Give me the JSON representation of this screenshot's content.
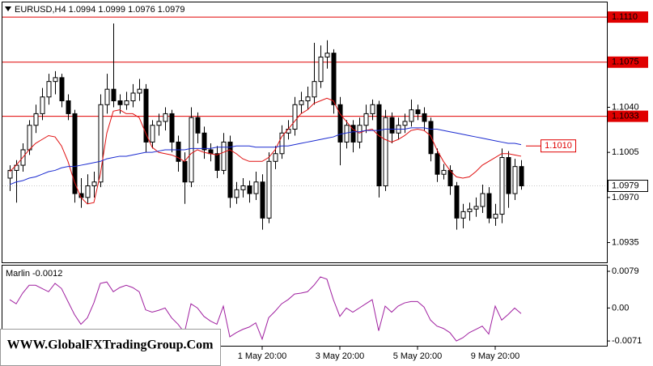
{
  "chart_data": [
    {
      "type": "candlestick",
      "symbol": "EURUSD,H4",
      "categories": [
        null,
        null,
        null,
        null,
        null,
        null,
        null,
        null,
        null,
        null,
        null,
        null,
        null,
        null,
        null,
        null,
        null,
        null,
        null,
        null,
        null,
        null,
        null,
        null,
        null,
        null,
        null,
        null,
        null,
        null,
        null,
        null,
        null,
        null,
        null,
        null,
        null,
        null,
        null,
        "1 May 20:00",
        null,
        null,
        null,
        null,
        null,
        null,
        null,
        null,
        null,
        null,
        null,
        "3 May 20:00",
        null,
        null,
        null,
        null,
        null,
        null,
        null,
        null,
        null,
        null,
        null,
        "5 May 20:00",
        null,
        null,
        null,
        null,
        null,
        null,
        null,
        null,
        null,
        null,
        null,
        "9 May 20:00",
        null,
        null,
        null,
        null
      ],
      "ohlc": [
        [
          1.0985,
          1.0995,
          1.0975,
          1.0991
        ],
        [
          1.0991,
          1.0999,
          1.0966,
          1.0995
        ],
        [
          1.0995,
          1.1012,
          1.099,
          1.1007
        ],
        [
          1.1007,
          1.103,
          1.1003,
          1.1026
        ],
        [
          1.1026,
          1.1042,
          1.102,
          1.1035
        ],
        [
          1.1035,
          1.1055,
          1.103,
          1.1048
        ],
        [
          1.1048,
          1.1066,
          1.1042,
          1.106
        ],
        [
          1.106,
          1.1068,
          1.105,
          1.1063
        ],
        [
          1.1063,
          1.1066,
          1.104,
          1.1045
        ],
        [
          1.1045,
          1.105,
          1.103,
          1.1035
        ],
        [
          1.1035,
          1.1038,
          1.0966,
          1.0973
        ],
        [
          1.0973,
          1.0985,
          1.0962,
          1.097
        ],
        [
          1.097,
          1.0988,
          1.0965,
          1.0979
        ],
        [
          1.0979,
          1.099,
          1.097,
          1.0982
        ],
        [
          1.0982,
          1.105,
          1.0978,
          1.1042
        ],
        [
          1.1042,
          1.1066,
          1.1035,
          1.1054
        ],
        [
          1.1054,
          1.1105,
          1.104,
          1.1045
        ],
        [
          1.1045,
          1.105,
          1.1035,
          1.1042
        ],
        [
          1.1042,
          1.1052,
          1.1038,
          1.1045
        ],
        [
          1.1045,
          1.1058,
          1.104,
          1.1051
        ],
        [
          1.1051,
          1.1062,
          1.1045,
          1.1054
        ],
        [
          1.1054,
          1.1058,
          1.1005,
          1.1013
        ],
        [
          1.1013,
          1.103,
          1.1008,
          1.1026
        ],
        [
          1.1026,
          1.1035,
          1.1018,
          1.1029
        ],
        [
          1.1029,
          1.104,
          1.1022,
          1.1035
        ],
        [
          1.1035,
          1.1038,
          1.1005,
          1.1013
        ],
        [
          1.1013,
          1.1018,
          1.099,
          1.0998
        ],
        [
          1.0998,
          1.1005,
          1.0965,
          1.0982
        ],
        [
          1.0982,
          1.104,
          1.0978,
          1.1032
        ],
        [
          1.1032,
          1.1036,
          1.1012,
          1.102
        ],
        [
          1.102,
          1.1025,
          1.1,
          1.1007
        ],
        [
          1.1007,
          1.1012,
          1.0998,
          1.1004
        ],
        [
          1.1004,
          1.101,
          1.0985,
          1.0991
        ],
        [
          1.0991,
          1.102,
          1.0988,
          1.1013
        ],
        [
          1.1013,
          1.1018,
          1.0962,
          1.097
        ],
        [
          1.097,
          1.0982,
          1.0965,
          1.0976
        ],
        [
          1.0976,
          1.0985,
          1.097,
          1.0979
        ],
        [
          1.0979,
          1.0983,
          1.0966,
          1.0973
        ],
        [
          1.0973,
          1.099,
          1.0968,
          1.0982
        ],
        [
          1.0982,
          1.0988,
          1.0945,
          1.0954
        ],
        [
          1.0954,
          1.1005,
          1.095,
          1.0998
        ],
        [
          1.0998,
          1.101,
          1.0992,
          1.1004
        ],
        [
          1.1004,
          1.1026,
          1.1,
          1.102
        ],
        [
          1.102,
          1.103,
          1.1015,
          1.1023
        ],
        [
          1.1023,
          1.1048,
          1.1018,
          1.1042
        ],
        [
          1.1042,
          1.1052,
          1.1035,
          1.1045
        ],
        [
          1.1045,
          1.1056,
          1.1038,
          1.1048
        ],
        [
          1.1048,
          1.109,
          1.1042,
          1.106
        ],
        [
          1.106,
          1.1088,
          1.1055,
          1.1079
        ],
        [
          1.1079,
          1.1092,
          1.107,
          1.1082
        ],
        [
          1.1082,
          1.1085,
          1.1035,
          1.1042
        ],
        [
          1.1042,
          1.1048,
          1.0995,
          1.1013
        ],
        [
          1.1013,
          1.103,
          1.1008,
          1.1026
        ],
        [
          1.1026,
          1.103,
          1.1005,
          1.1013
        ],
        [
          1.1013,
          1.1032,
          1.1008,
          1.1026
        ],
        [
          1.1026,
          1.1042,
          1.102,
          1.1035
        ],
        [
          1.1035,
          1.1046,
          1.103,
          1.1042
        ],
        [
          1.1042,
          1.1045,
          1.097,
          1.0979
        ],
        [
          1.0979,
          1.1038,
          1.0975,
          1.1032
        ],
        [
          1.1032,
          1.1036,
          1.1012,
          1.102
        ],
        [
          1.102,
          1.1032,
          1.1015,
          1.1026
        ],
        [
          1.1026,
          1.1035,
          1.102,
          1.1029
        ],
        [
          1.1029,
          1.1046,
          1.1025,
          1.1038
        ],
        [
          1.1038,
          1.1042,
          1.103,
          1.1035
        ],
        [
          1.1035,
          1.104,
          1.1022,
          1.1029
        ],
        [
          1.1029,
          1.1032,
          1.0998,
          1.1004
        ],
        [
          1.1004,
          1.1008,
          1.0982,
          1.0988
        ],
        [
          1.0988,
          1.0996,
          1.0984,
          1.0991
        ],
        [
          1.0991,
          1.0995,
          1.0972,
          1.0979
        ],
        [
          1.0979,
          1.0982,
          1.0945,
          1.0954
        ],
        [
          1.0954,
          1.0965,
          1.0946,
          1.0959
        ],
        [
          1.0959,
          1.0966,
          1.0952,
          1.0961
        ],
        [
          1.0961,
          1.097,
          1.0955,
          1.0963
        ],
        [
          1.0963,
          1.098,
          1.0958,
          1.0973
        ],
        [
          1.0973,
          1.0978,
          1.095,
          1.0954
        ],
        [
          1.0954,
          1.0965,
          1.0948,
          1.0957
        ],
        [
          1.0957,
          1.1008,
          1.095,
          1.1001
        ],
        [
          1.1001,
          1.1006,
          1.0962,
          1.0973
        ],
        [
          1.0973,
          1.1,
          1.0968,
          1.0994
        ],
        [
          1.0994,
          1.0999,
          1.0976,
          1.0979
        ]
      ],
      "up_color": "#ffffff",
      "down_color": "#000000",
      "candle_stroke": "#000000",
      "series": [
        {
          "color": "#e01010",
          "values": [
            1.099,
            1.0995,
            1.1001,
            1.1007,
            1.1012,
            1.1015,
            1.1018,
            1.1017,
            1.101,
            1.0998,
            1.0982,
            1.097,
            1.0965,
            1.0966,
            1.0988,
            1.102,
            1.1037,
            1.1038,
            1.1035,
            1.1035,
            1.1032,
            1.102,
            1.1009,
            1.1005,
            1.1004,
            1.1003,
            1.1001,
            1.0998,
            1.1004,
            1.1007,
            1.1005,
            1.1004,
            1.1003,
            1.1005,
            1.1007,
            1.1004,
            1.1,
            1.0998,
            1.0998,
            1.0998,
            1.1001,
            1.1007,
            1.1017,
            1.1023,
            1.1029,
            1.1035,
            1.1038,
            1.1043,
            1.1045,
            1.1047,
            1.1045,
            1.1035,
            1.1029,
            1.1023,
            1.102,
            1.1022,
            1.1023,
            1.1018,
            1.1015,
            1.1013,
            1.1015,
            1.1018,
            1.1022,
            1.1023,
            1.1022,
            1.1018,
            1.1007,
            1.0998,
            1.0991,
            1.0986,
            1.0985,
            1.0986,
            1.099,
            1.0995,
            1.0998,
            1.1001,
            1.1004,
            1.1004,
            1.1003,
            1.1002
          ]
        },
        {
          "color": "#1a2ad0",
          "values": [
            1.098,
            1.0982,
            1.0983,
            1.0985,
            1.0986,
            1.0988,
            1.099,
            1.0991,
            1.0993,
            1.0994,
            1.0994,
            1.0995,
            1.0996,
            1.0997,
            1.0998,
            1.1,
            1.1001,
            1.1002,
            1.1002,
            1.1003,
            1.1004,
            1.1005,
            1.1005,
            1.1006,
            1.1007,
            1.1007,
            1.1007,
            1.1007,
            1.1008,
            1.1008,
            1.1008,
            1.1008,
            1.1009,
            1.1009,
            1.1009,
            1.101,
            1.101,
            1.101,
            1.1009,
            1.1009,
            1.1009,
            1.1009,
            1.101,
            1.101,
            1.1011,
            1.1012,
            1.1013,
            1.1014,
            1.1015,
            1.1016,
            1.1017,
            1.1019,
            1.102,
            1.1021,
            1.1021,
            1.1022,
            1.1022,
            1.1022,
            1.1023,
            1.1023,
            1.1023,
            1.1023,
            1.1024,
            1.1024,
            1.1024,
            1.1023,
            1.1023,
            1.1022,
            1.1021,
            1.102,
            1.1019,
            1.1018,
            1.1017,
            1.1016,
            1.1015,
            1.1014,
            1.1013,
            1.1012,
            1.1012,
            1.1011
          ]
        }
      ],
      "hlines": [
        {
          "value": 1.111,
          "label": "1.1110"
        },
        {
          "value": 1.1075,
          "label": "1.1075"
        },
        {
          "value": 1.1033,
          "label": "1.1033"
        }
      ],
      "hline_color": "#e00000",
      "current_price": 1.0979,
      "annotation": {
        "value": 1.101,
        "label": "1.1010"
      },
      "ylim": [
        1.0919,
        1.1122
      ],
      "yticks": [
        {
          "value": 1.104,
          "label": "1.1040"
        },
        1.1005,
        {
          "value": 1.097,
          "label": "1.0970"
        },
        1.0935
      ]
    },
    {
      "type": "line",
      "title": "Marlin",
      "color": "#a020a0",
      "values": [
        0.0018,
        0.0009,
        0.0032,
        0.0049,
        0.0049,
        0.0042,
        0.0035,
        0.0053,
        0.0042,
        0.0014,
        -0.0014,
        -0.0035,
        -0.0021,
        0.0011,
        0.0053,
        0.0056,
        0.0035,
        0.0044,
        0.0049,
        0.0044,
        0.0035,
        -0.0004,
        -0.0009,
        -0.0005,
        0,
        -0.0021,
        -0.0035,
        -0.0053,
        0.0009,
        0,
        -0.0018,
        -0.0028,
        -0.0035,
        0.0004,
        -0.0062,
        -0.0053,
        -0.0046,
        -0.0041,
        -0.0032,
        -0.0067,
        -0.0021,
        -0.0007,
        0.0009,
        0.0018,
        0.003,
        0.0032,
        0.0035,
        0.0049,
        0.0067,
        0.0062,
        0.0018,
        -0.0018,
        0,
        -0.0009,
        0,
        0.0009,
        0.0018,
        -0.0049,
        0.0004,
        -0.0009,
        0.0004,
        0.0011,
        0.0014,
        0.0014,
        0.0002,
        -0.0026,
        -0.0039,
        -0.0044,
        -0.0053,
        -0.0071,
        -0.0064,
        -0.0053,
        -0.0046,
        -0.0039,
        -0.0056,
        0.0004,
        -0.0026,
        -0.0014,
        0,
        -0.0012
      ],
      "ylim": [
        -0.0083,
        0.0093
      ],
      "yticks": [
        0.0079,
        {
          "value": 0,
          "label": "0.00"
        },
        -0.0071
      ]
    }
  ],
  "watermark": "WWW.GlobalFXTradingGroup.Com"
}
